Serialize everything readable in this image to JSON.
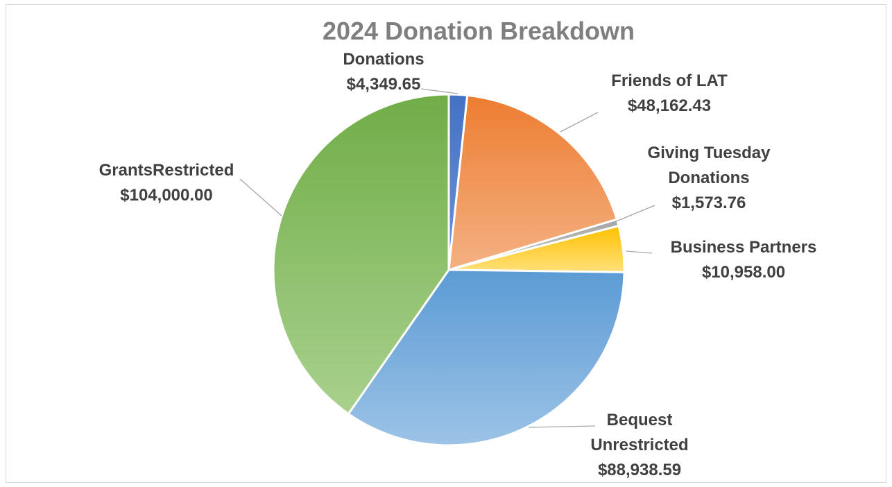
{
  "chart_data": {
    "type": "pie",
    "title": "2024 Donation Breakdown",
    "start_angle_deg": 0,
    "direction": "clockwise",
    "currency": "$",
    "slices": [
      {
        "label_lines": [
          "Donations"
        ],
        "value": 4349.65,
        "value_label": "$4,349.65",
        "color_top": "#4472c4",
        "color_bottom": "#6f92d6"
      },
      {
        "label_lines": [
          "Friends of LAT"
        ],
        "value": 48162.43,
        "value_label": "$48,162.43",
        "color_top": "#ed7d31",
        "color_bottom": "#f4b183"
      },
      {
        "label_lines": [
          "Giving Tuesday",
          "Donations"
        ],
        "value": 1573.76,
        "value_label": "$1,573.76",
        "color_top": "#a5a5a5",
        "color_bottom": "#c9c9c9"
      },
      {
        "label_lines": [
          "Business Partners"
        ],
        "value": 10958.0,
        "value_label": "$10,958.00",
        "color_top": "#ffc000",
        "color_bottom": "#ffe07a"
      },
      {
        "label_lines": [
          "Bequest",
          "Unrestricted"
        ],
        "value": 88938.59,
        "value_label": "$88,938.59",
        "color_top": "#5b9bd5",
        "color_bottom": "#9dc3e6"
      },
      {
        "label_lines": [
          "GrantsRestricted"
        ],
        "value": 104000.0,
        "value_label": "$104,000.00",
        "color_top": "#70ad47",
        "color_bottom": "#a9d18e"
      }
    ]
  }
}
